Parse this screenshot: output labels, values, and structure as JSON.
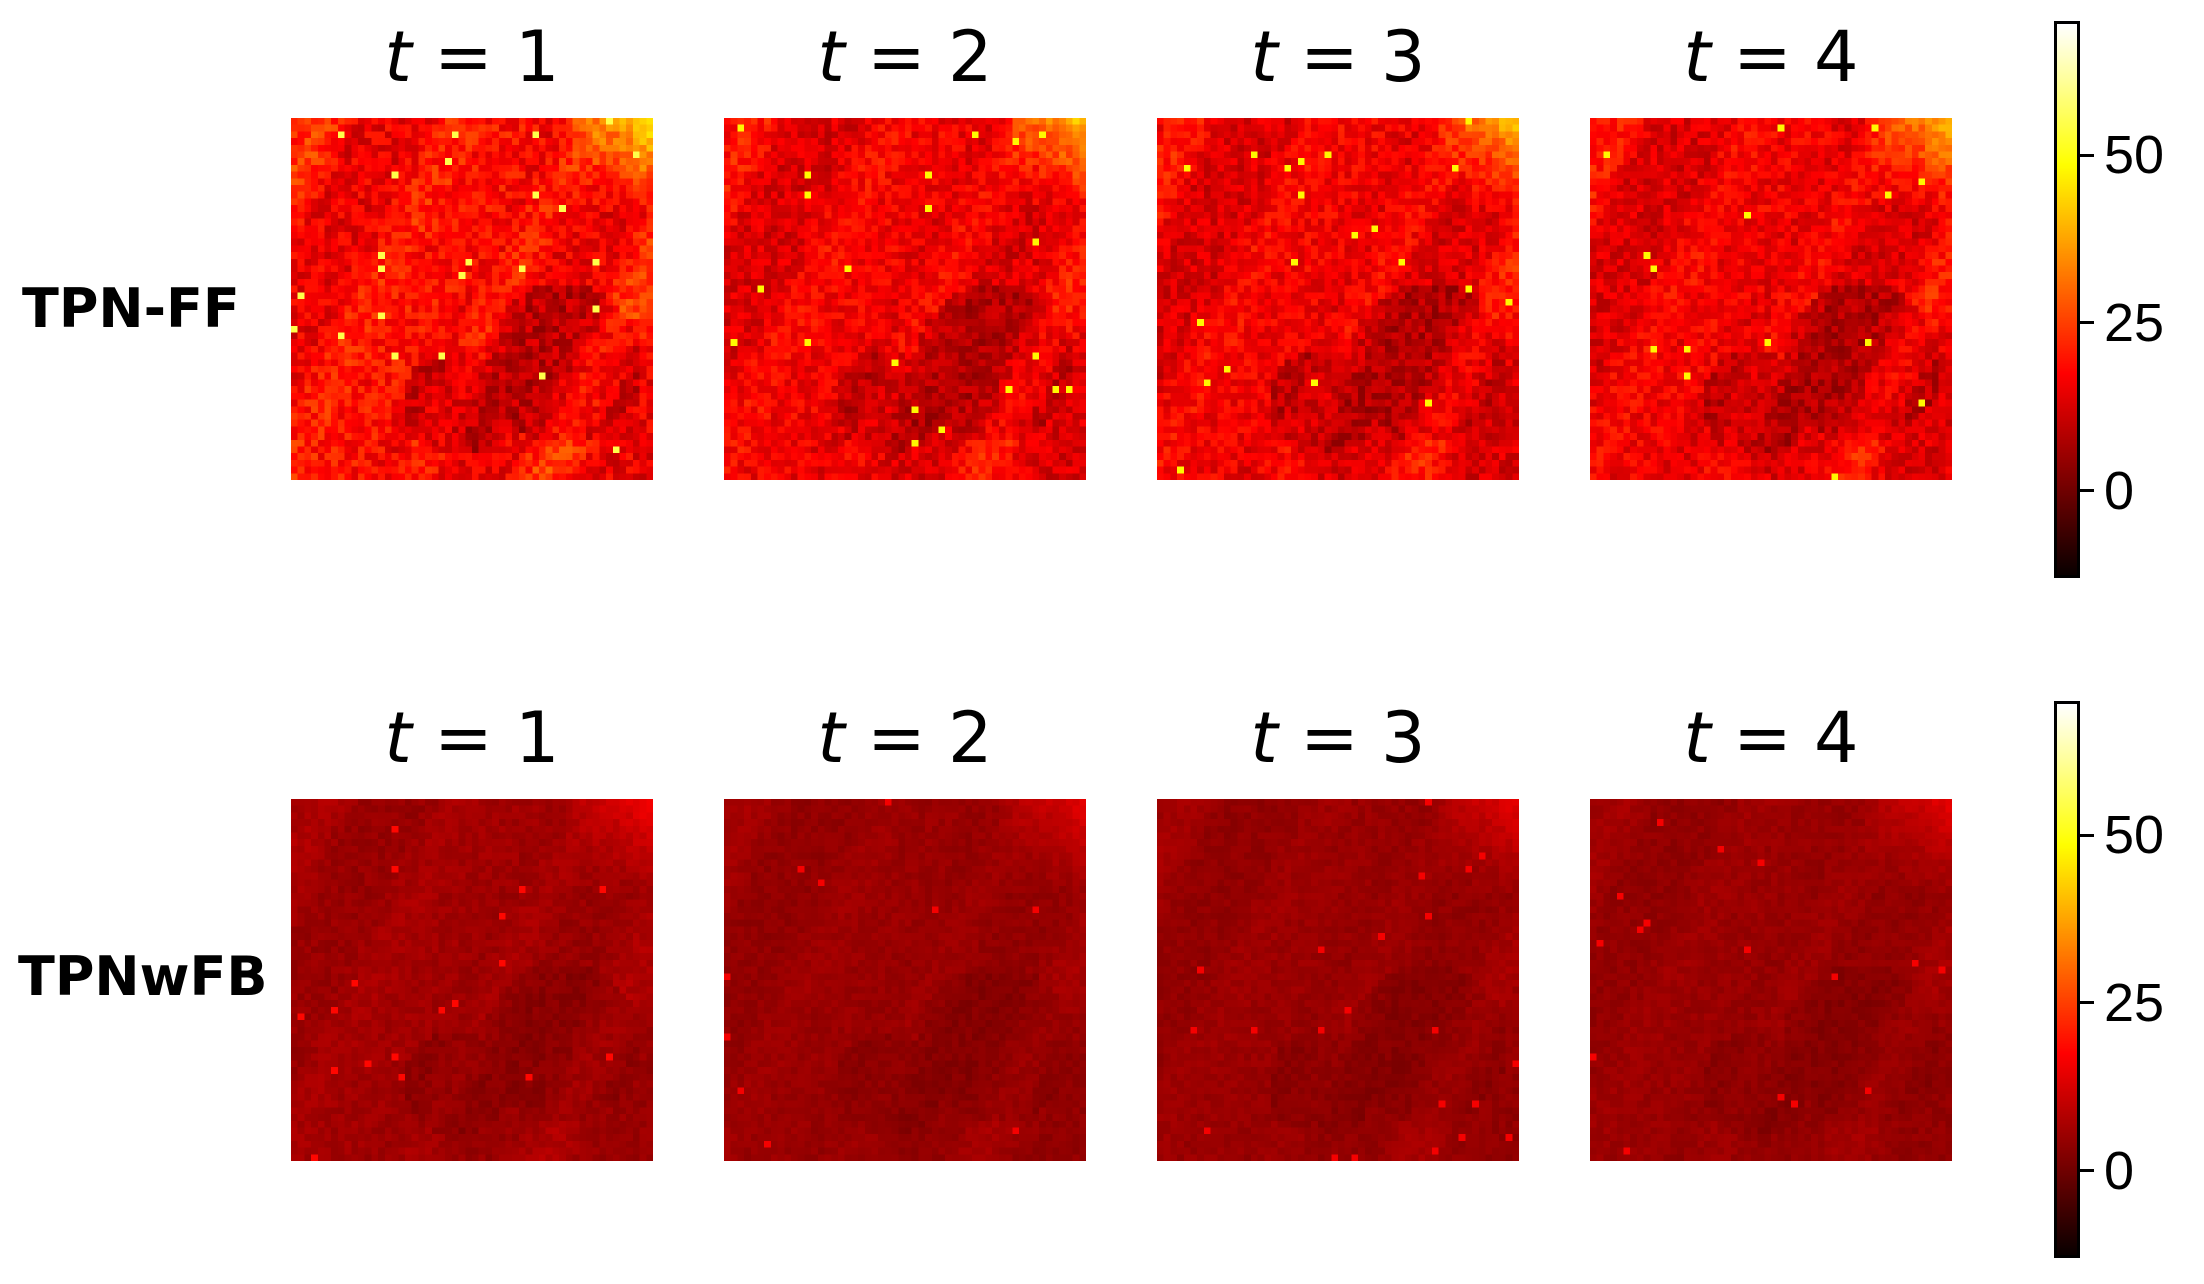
{
  "chart_data": {
    "type": "heatmap",
    "title": "",
    "colormap": "hot",
    "colorbar": {
      "range": [
        -13,
        70
      ],
      "ticks": [
        0,
        25,
        50
      ],
      "tick_labels": [
        "0",
        "25",
        "50"
      ]
    },
    "panel_titles": [
      "t = 1",
      "t = 2",
      "t = 3",
      "t = 4"
    ],
    "rows": [
      {
        "label": "TPN-FF",
        "grid": "approximately 54x54 cells per panel",
        "typical_value": 18,
        "hotspot_max": 55,
        "panels": [
          {
            "t": 1,
            "mean_level": 20,
            "hotspot_max": 55
          },
          {
            "t": 2,
            "mean_level": 17,
            "hotspot_max": 48
          },
          {
            "t": 3,
            "mean_level": 17,
            "hotspot_max": 48
          },
          {
            "t": 4,
            "mean_level": 17,
            "hotspot_max": 48
          }
        ]
      },
      {
        "label": "TPNwFB",
        "grid": "approximately 54x54 cells per panel",
        "typical_value": 5,
        "hotspot_max": 18,
        "panels": [
          {
            "t": 1,
            "mean_level": 6,
            "hotspot_max": 18
          },
          {
            "t": 2,
            "mean_level": 5,
            "hotspot_max": 16
          },
          {
            "t": 3,
            "mean_level": 5,
            "hotspot_max": 16
          },
          {
            "t": 4,
            "mean_level": 5,
            "hotspot_max": 16
          }
        ]
      }
    ]
  }
}
